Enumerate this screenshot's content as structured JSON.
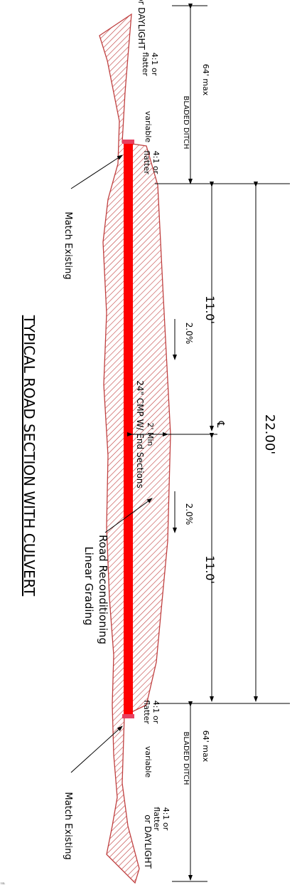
{
  "title": "TYPICAL ROAD SECTION WITH CULVERT",
  "colors": {
    "line": "#000000",
    "hatch": "#c04040",
    "culvert": "#ff0000"
  },
  "top_side": {
    "daylight": "or DAYLIGHT",
    "slope_outer": "4:1 or\nflatter",
    "variable": "variable",
    "slope_inner": "4:1 or\nflatter",
    "ditch_width": "64' max",
    "ditch_label": "BLADED DITCH",
    "match": "Match Existing"
  },
  "bottom_side": {
    "slope_inner": "4:1 or\nflatter",
    "variable": "variable",
    "slope_outer": "4:1 or\nflatter",
    "daylight": "or DAYLIGHT",
    "ditch_width": "64' max",
    "ditch_label": "BLADED DITCH",
    "match": "Match Existing"
  },
  "road": {
    "total_width": "22.00'",
    "half_width_top": "11.0'",
    "half_width_bottom": "11.0'",
    "crossfall_top": "2.0%",
    "crossfall_bottom": "2.0%",
    "centerline": "℄",
    "cover": "2' Min",
    "culvert": "24\" CMP W/ End Sections",
    "grading_line1": "Road Reconditioning",
    "grading_line2": "Linear Grading"
  }
}
